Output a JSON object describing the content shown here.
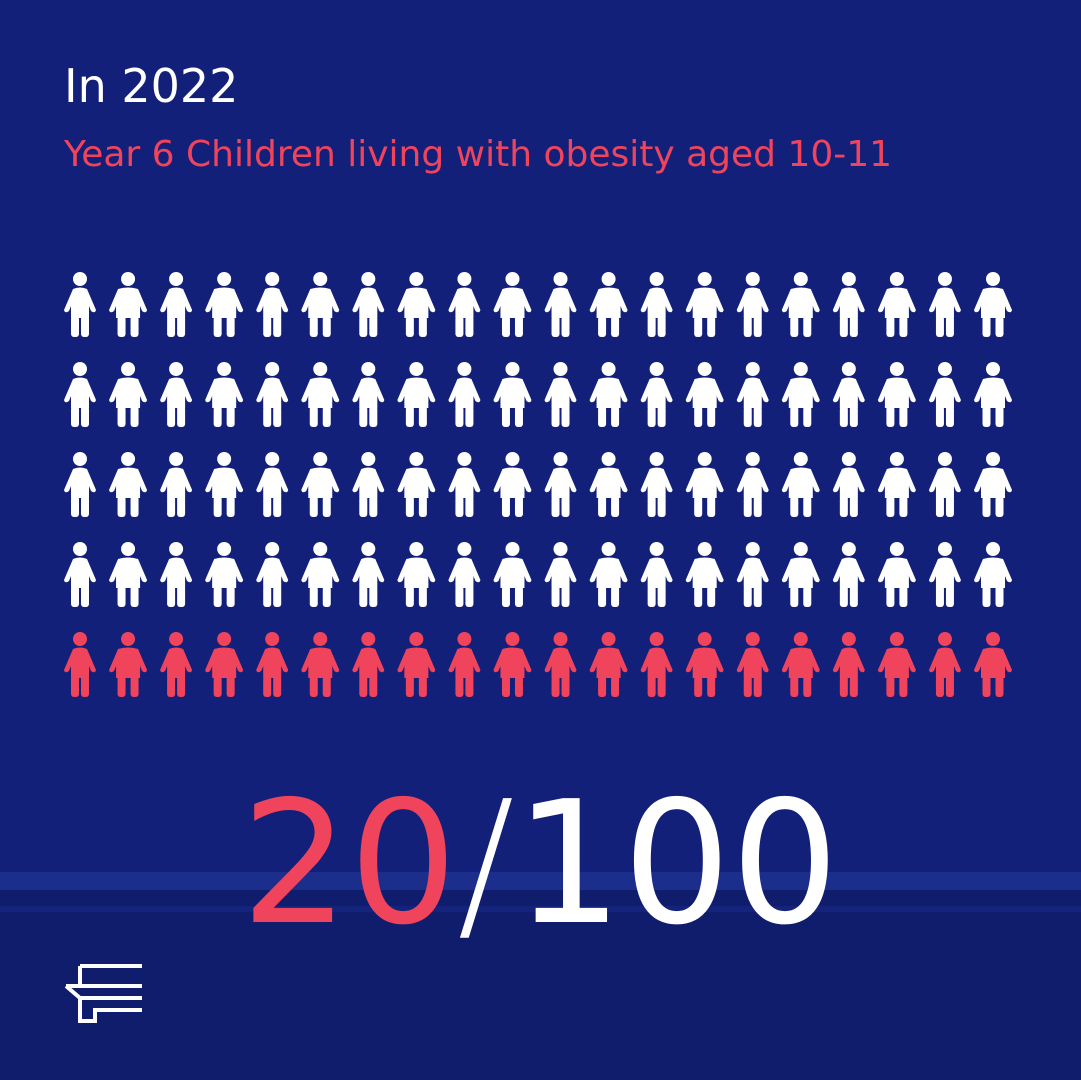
{
  "chart_data": {
    "type": "pictogram",
    "title": "In 2022",
    "subtitle": "Year 6 Children living with obesity aged 10-11",
    "value": 20,
    "separator": "/",
    "total": 100,
    "color": "#f0445c",
    "base_color": "#ffffff"
  }
}
